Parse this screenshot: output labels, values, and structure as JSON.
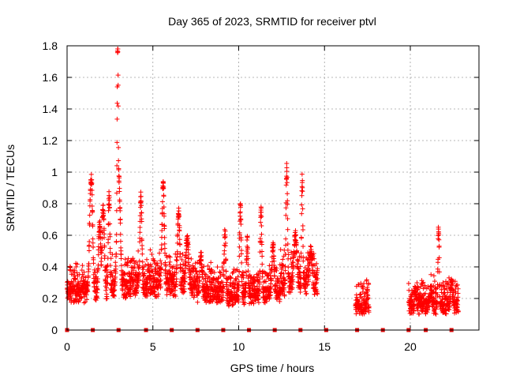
{
  "chart_data": {
    "type": "scatter",
    "title": "Day 365 of 2023, SRMTID for receiver ptvl",
    "xlabel": "GPS time / hours",
    "ylabel": "SRMTID / TECUs",
    "xlim": [
      0,
      24
    ],
    "ylim": [
      0,
      1.8
    ],
    "x_ticks": [
      0,
      5,
      10,
      15,
      20
    ],
    "x_tick_labels": [
      "0",
      "5",
      "10",
      "15",
      "20"
    ],
    "y_ticks": [
      0,
      0.2,
      0.4,
      0.6,
      0.8,
      1,
      1.2,
      1.4,
      1.6,
      1.8
    ],
    "y_tick_labels": [
      "0",
      "0.2",
      "0.4",
      "0.6",
      "0.8",
      "1",
      "1.2",
      "1.4",
      "1.6",
      "1.8"
    ],
    "grid": true,
    "series_color": "#ff0000",
    "marker_color": "#dd0000",
    "hour_markers": [
      0,
      1.5,
      3,
      4.6,
      6.1,
      7.6,
      9.1,
      10.6,
      12.1,
      13.6,
      15.1,
      16.9,
      18.4,
      19.9,
      20.9,
      22.4
    ],
    "segments": [
      {
        "start": 0.0,
        "end": 2.0,
        "base": 0.22,
        "noise": 0.05,
        "peaks": [
          [
            1.4,
            0.9,
            0.18
          ],
          [
            1.9,
            0.6,
            0.15
          ]
        ]
      },
      {
        "start": 2.0,
        "end": 3.6,
        "base": 0.25,
        "noise": 0.06,
        "peaks": [
          [
            2.1,
            0.68,
            0.15
          ],
          [
            2.45,
            0.76,
            0.1
          ],
          [
            2.95,
            1.72,
            0.08
          ],
          [
            3.0,
            0.9,
            0.2
          ]
        ]
      },
      {
        "start": 3.6,
        "end": 6.0,
        "base": 0.28,
        "noise": 0.07,
        "peaks": [
          [
            3.4,
            0.52,
            0.2
          ],
          [
            4.3,
            0.75,
            0.12
          ],
          [
            5.6,
            0.8,
            0.15
          ]
        ]
      },
      {
        "start": 6.0,
        "end": 7.6,
        "base": 0.26,
        "noise": 0.06,
        "peaks": [
          [
            6.5,
            0.64,
            0.15
          ],
          [
            7.0,
            0.48,
            0.2
          ]
        ]
      },
      {
        "start": 7.6,
        "end": 9.3,
        "base": 0.22,
        "noise": 0.05,
        "peaks": [
          [
            7.8,
            0.4,
            0.15
          ],
          [
            9.2,
            0.55,
            0.1
          ]
        ]
      },
      {
        "start": 9.3,
        "end": 11.0,
        "base": 0.2,
        "noise": 0.05,
        "peaks": [
          [
            10.1,
            0.72,
            0.1
          ],
          [
            10.5,
            0.5,
            0.1
          ]
        ]
      },
      {
        "start": 11.0,
        "end": 12.4,
        "base": 0.22,
        "noise": 0.05,
        "peaks": [
          [
            11.3,
            0.67,
            0.1
          ],
          [
            12.0,
            0.45,
            0.15
          ]
        ]
      },
      {
        "start": 12.4,
        "end": 14.6,
        "base": 0.28,
        "noise": 0.07,
        "peaks": [
          [
            12.8,
            0.92,
            0.1
          ],
          [
            13.3,
            0.5,
            0.2
          ],
          [
            13.7,
            0.86,
            0.08
          ],
          [
            14.2,
            0.4,
            0.2
          ]
        ]
      },
      {
        "start": 16.8,
        "end": 17.6,
        "base": 0.13,
        "noise": 0.03,
        "peaks": [
          [
            17.5,
            0.2,
            0.08
          ]
        ]
      },
      {
        "start": 19.9,
        "end": 22.8,
        "base": 0.14,
        "noise": 0.04,
        "peaks": [
          [
            20.3,
            0.2,
            0.1
          ],
          [
            21.2,
            0.2,
            0.15
          ],
          [
            21.65,
            0.6,
            0.08
          ],
          [
            22.4,
            0.26,
            0.12
          ]
        ]
      }
    ]
  }
}
